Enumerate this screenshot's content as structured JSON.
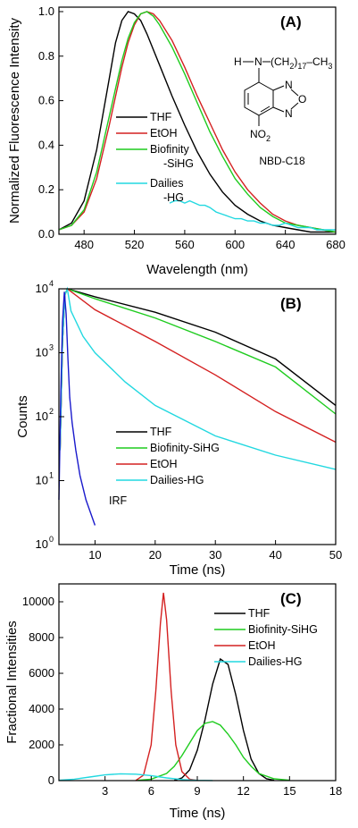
{
  "chart_data": [
    {
      "panel": "(A)",
      "type": "line",
      "xlabel": "Wavelength (nm)",
      "ylabel": "Normalized Fluorescence Intensity",
      "xlim": [
        460,
        680
      ],
      "ylim": [
        0,
        1.02
      ],
      "xticks": [
        480,
        520,
        560,
        600,
        640,
        680
      ],
      "yticks": [
        0.0,
        0.2,
        0.4,
        0.6,
        0.8,
        1.0
      ],
      "ytick_labels": [
        "0.0",
        "0.2",
        "0.4",
        "0.6",
        "0.8",
        "1.0"
      ],
      "structure_label": "NBD-C18",
      "structure_text": {
        "h": "H",
        "n": "N",
        "chain": "(CH",
        "chain_sub": "2",
        "chain_end": ")",
        "chain_sub2": "17",
        "chain_tail": "–CH",
        "chain_sub3": "3",
        "o": "O",
        "no": "NO",
        "no_sub": "2"
      },
      "legend": [
        "THF",
        "EtOH",
        "Biofinity",
        "-SiHG",
        "Dailies",
        "-HG"
      ],
      "series": [
        {
          "name": "THF",
          "color": "#000000",
          "x": [
            460,
            470,
            480,
            490,
            500,
            505,
            510,
            515,
            520,
            525,
            530,
            540,
            550,
            560,
            570,
            580,
            590,
            600,
            610,
            620,
            630,
            640,
            650,
            660,
            670,
            680
          ],
          "y": [
            0.02,
            0.05,
            0.15,
            0.38,
            0.7,
            0.86,
            0.96,
            1.0,
            0.99,
            0.96,
            0.9,
            0.76,
            0.62,
            0.49,
            0.37,
            0.27,
            0.19,
            0.13,
            0.09,
            0.06,
            0.04,
            0.03,
            0.02,
            0.01,
            0.01,
            0.01
          ]
        },
        {
          "name": "EtOH",
          "color": "#d42020",
          "x": [
            460,
            470,
            480,
            490,
            500,
            510,
            515,
            520,
            525,
            530,
            535,
            540,
            550,
            560,
            570,
            580,
            590,
            600,
            610,
            620,
            630,
            640,
            650,
            660,
            670,
            680
          ],
          "y": [
            0.02,
            0.04,
            0.1,
            0.25,
            0.49,
            0.75,
            0.86,
            0.94,
            0.99,
            1.0,
            0.99,
            0.96,
            0.87,
            0.75,
            0.62,
            0.5,
            0.38,
            0.28,
            0.2,
            0.14,
            0.09,
            0.06,
            0.04,
            0.03,
            0.02,
            0.01
          ]
        },
        {
          "name": "Biofinity-SiHG",
          "color": "#1fcc1f",
          "x": [
            460,
            470,
            480,
            490,
            500,
            510,
            515,
            520,
            525,
            530,
            535,
            540,
            550,
            560,
            570,
            580,
            590,
            600,
            610,
            620,
            630,
            640,
            650,
            660,
            670,
            680
          ],
          "y": [
            0.02,
            0.04,
            0.11,
            0.28,
            0.53,
            0.78,
            0.88,
            0.95,
            0.99,
            1.0,
            0.98,
            0.94,
            0.84,
            0.72,
            0.59,
            0.46,
            0.35,
            0.25,
            0.18,
            0.12,
            0.08,
            0.05,
            0.04,
            0.03,
            0.02,
            0.01
          ]
        },
        {
          "name": "Dailies-HG",
          "color": "#22d8e0",
          "x": [
            548,
            552,
            556,
            560,
            564,
            568,
            572,
            576,
            580,
            585,
            590,
            595,
            600,
            605,
            610,
            615,
            620,
            625,
            630,
            635,
            640,
            645,
            650,
            655,
            660,
            665,
            670,
            675,
            680
          ],
          "y": [
            0.14,
            0.15,
            0.15,
            0.14,
            0.15,
            0.14,
            0.13,
            0.13,
            0.12,
            0.1,
            0.09,
            0.08,
            0.07,
            0.07,
            0.06,
            0.06,
            0.05,
            0.05,
            0.04,
            0.04,
            0.05,
            0.04,
            0.03,
            0.03,
            0.03,
            0.02,
            0.02,
            0.02,
            0.02
          ]
        }
      ]
    },
    {
      "panel": "(B)",
      "type": "line",
      "xlabel": "Time (ns)",
      "ylabel": "Counts",
      "xlim": [
        4,
        50
      ],
      "ylim_log10": [
        0,
        4
      ],
      "yscale": "log",
      "xticks": [
        10,
        20,
        30,
        40,
        50
      ],
      "ytick_base": "10",
      "ytick_exps": [
        "0",
        "1",
        "2",
        "3",
        "4"
      ],
      "annotation": "IRF",
      "legend": [
        "THF",
        "Biofinity-SiHG",
        "EtOH",
        "Dailies-HG"
      ],
      "series": [
        {
          "name": "THF",
          "color": "#000000",
          "x": [
            4.2,
            4.6,
            5.0,
            5.4,
            10,
            20,
            30,
            40,
            50
          ],
          "y": [
            30,
            1500,
            8000,
            10000,
            7500,
            4300,
            2100,
            800,
            150
          ]
        },
        {
          "name": "Biofinity-SiHG",
          "color": "#1fcc1f",
          "x": [
            4.2,
            4.6,
            5.0,
            5.4,
            10,
            20,
            30,
            40,
            50
          ],
          "y": [
            30,
            1500,
            8000,
            10000,
            7000,
            3500,
            1500,
            600,
            110
          ]
        },
        {
          "name": "EtOH",
          "color": "#d42020",
          "x": [
            4.2,
            4.6,
            5.0,
            5.4,
            10,
            20,
            30,
            40,
            50
          ],
          "y": [
            30,
            1500,
            8000,
            10000,
            4700,
            1500,
            450,
            120,
            40
          ]
        },
        {
          "name": "Dailies-HG",
          "color": "#22d8e0",
          "x": [
            4.2,
            4.6,
            5.0,
            5.4,
            6,
            8,
            10,
            15,
            20,
            30,
            40,
            50
          ],
          "y": [
            30,
            1500,
            8000,
            10000,
            4500,
            1800,
            1000,
            350,
            150,
            50,
            25,
            15
          ]
        },
        {
          "name": "IRF",
          "color": "#1a1acc",
          "x": [
            4.0,
            4.3,
            4.6,
            4.9,
            5.2,
            5.5,
            5.8,
            6.2,
            6.8,
            7.5,
            8.5,
            10
          ],
          "y": [
            5,
            200,
            3000,
            9000,
            4000,
            800,
            200,
            80,
            30,
            12,
            5,
            2
          ]
        }
      ]
    },
    {
      "panel": "(C)",
      "type": "line",
      "xlabel": "Time (ns)",
      "ylabel": "Fractional Intensities",
      "xlim": [
        0,
        18
      ],
      "ylim": [
        0,
        11000
      ],
      "xticks": [
        3,
        6,
        9,
        12,
        15,
        18
      ],
      "yticks": [
        0,
        2000,
        4000,
        6000,
        8000,
        10000
      ],
      "legend": [
        "THF",
        "Biofinity-SiHG",
        "EtOH",
        "Dailies-HG"
      ],
      "series": [
        {
          "name": "THF",
          "color": "#000000",
          "x": [
            7.5,
            8,
            8.5,
            9,
            9.5,
            10,
            10.5,
            11,
            11.5,
            12,
            12.5,
            13,
            13.5,
            14
          ],
          "y": [
            20,
            150,
            600,
            1700,
            3400,
            5400,
            6800,
            6500,
            4800,
            2800,
            1200,
            400,
            100,
            20
          ]
        },
        {
          "name": "Biofinity-SiHG",
          "color": "#1fcc1f",
          "x": [
            5,
            6,
            7,
            7.5,
            8,
            8.5,
            9,
            9.5,
            10,
            10.5,
            11,
            11.5,
            12,
            12.5,
            13,
            14,
            15
          ],
          "y": [
            10,
            80,
            400,
            800,
            1400,
            2100,
            2800,
            3200,
            3300,
            3100,
            2600,
            2000,
            1300,
            800,
            400,
            100,
            20
          ]
        },
        {
          "name": "EtOH",
          "color": "#d42020",
          "x": [
            5,
            5.5,
            6,
            6.3,
            6.6,
            6.8,
            7.0,
            7.3,
            7.6,
            8,
            8.5,
            9
          ],
          "y": [
            10,
            300,
            2000,
            5000,
            8800,
            10500,
            9000,
            5000,
            2000,
            500,
            80,
            10
          ]
        },
        {
          "name": "Dailies-HG",
          "color": "#22d8e0",
          "x": [
            0,
            1,
            2,
            3,
            4,
            5,
            6,
            7,
            8,
            9,
            10
          ],
          "y": [
            20,
            80,
            200,
            320,
            380,
            360,
            280,
            150,
            60,
            15,
            5
          ]
        }
      ]
    }
  ]
}
